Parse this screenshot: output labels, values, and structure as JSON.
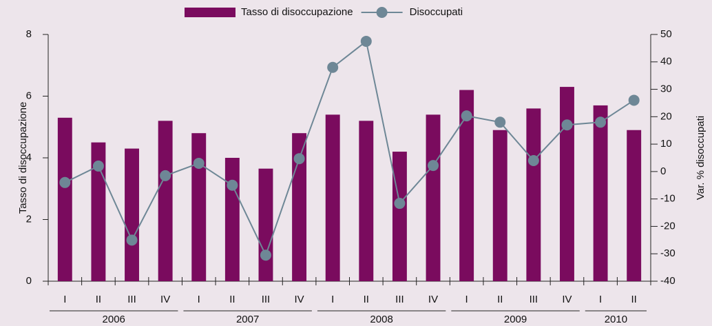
{
  "chart_data": {
    "type": "bar-line",
    "categories": [
      "I",
      "II",
      "III",
      "IV",
      "I",
      "II",
      "III",
      "IV",
      "I",
      "II",
      "III",
      "IV",
      "I",
      "II",
      "III",
      "IV",
      "I",
      "II"
    ],
    "groups": [
      {
        "label": "2006",
        "count": 4
      },
      {
        "label": "2007",
        "count": 4
      },
      {
        "label": "2008",
        "count": 4
      },
      {
        "label": "2009",
        "count": 4
      },
      {
        "label": "2010",
        "count": 2
      }
    ],
    "y_label": "Tasso di disoccupazione",
    "y2_label": "Var. % disoccupati",
    "legend": "top",
    "series": [
      {
        "name": "Tasso di disoccupazione",
        "type": "bar",
        "color": "#7a0b5e",
        "values": [
          5.3,
          4.5,
          4.3,
          5.2,
          4.8,
          4.0,
          3.65,
          4.8,
          5.4,
          5.2,
          4.2,
          5.4,
          6.2,
          4.9,
          5.6,
          6.3,
          5.7,
          4.9
        ]
      },
      {
        "name": "Disoccupati",
        "type": "line",
        "axis": "y2",
        "color": "#6e8796",
        "values": [
          -4,
          2,
          -25,
          -1.5,
          3,
          -5,
          -30.5,
          4.7,
          38,
          47.5,
          -11.6,
          2.2,
          20.3,
          18,
          4,
          17,
          18,
          26
        ]
      }
    ],
    "ylim": [
      0,
      8
    ],
    "yticks": [
      0,
      2,
      4,
      6,
      8
    ],
    "y2lim": [
      -40,
      50
    ],
    "y2ticks": [
      -40,
      -30,
      -20,
      -10,
      0,
      10,
      20,
      30,
      40,
      50
    ]
  }
}
